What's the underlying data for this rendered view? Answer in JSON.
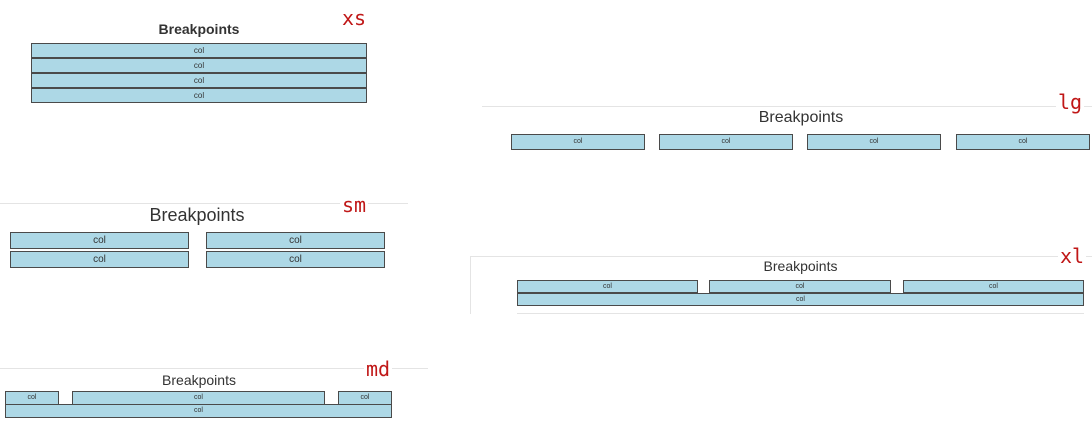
{
  "xs": {
    "tag": "xs",
    "title": "Breakpoints",
    "cols": [
      "col",
      "col",
      "col",
      "col"
    ]
  },
  "sm": {
    "tag": "sm",
    "title": "Breakpoints",
    "cols": [
      "col",
      "col",
      "col",
      "col"
    ]
  },
  "md": {
    "tag": "md",
    "title": "Breakpoints",
    "cols": [
      "col",
      "col",
      "col",
      "col"
    ]
  },
  "lg": {
    "tag": "lg",
    "title": "Breakpoints",
    "cols": [
      "col",
      "col",
      "col",
      "col"
    ]
  },
  "xl": {
    "tag": "xl",
    "title": "Breakpoints",
    "cols": [
      "col",
      "col",
      "col",
      "col"
    ]
  },
  "colors": {
    "col_background": "#add8e6",
    "col_border": "#4a4a4a",
    "tag_color": "#c01717"
  }
}
